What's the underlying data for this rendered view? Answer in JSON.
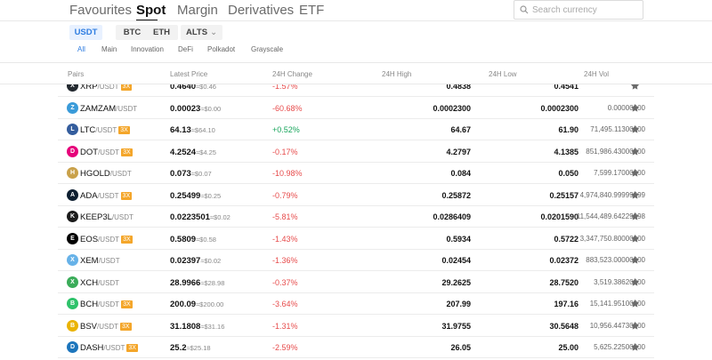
{
  "top_tabs": [
    "Favourites",
    "Spot",
    "Margin",
    "Derivatives",
    "ETF"
  ],
  "active_top_tab": "Spot",
  "search": {
    "placeholder": "Search currency"
  },
  "quote_tabs": [
    "USDT",
    "BTC",
    "ETH",
    "ALTS"
  ],
  "active_quote_tab": "USDT",
  "sub_tabs": [
    "All",
    "Main",
    "Innovation",
    "DeFi",
    "Polkadot",
    "Grayscale"
  ],
  "active_sub_tab": "All",
  "columns": {
    "pairs": "Pairs",
    "latest_price": "Latest Price",
    "change_24h": "24H Change",
    "high_24h": "24H High",
    "low_24h": "24H Low",
    "vol_24h": "24H Vol"
  },
  "quote_currency": "/USDT",
  "rows": [
    {
      "base": "XRP",
      "leverage": "3X",
      "price": "0.4640",
      "usd": "≈$0.46",
      "change": "-1.57%",
      "change_dir": "neg",
      "high": "0.4838",
      "low": "0.4541",
      "vol": "",
      "icon": "xrp",
      "icon_color": "#23292f",
      "partial": true
    },
    {
      "base": "ZAMZAM",
      "leverage": "",
      "price": "0.00023",
      "usd": "≈$0.00",
      "change": "-60.68%",
      "change_dir": "neg",
      "high": "0.0002300",
      "low": "0.0002300",
      "vol": "0.00000000",
      "icon": "zamzam",
      "icon_color": "#3a9bd9"
    },
    {
      "base": "LTC",
      "leverage": "3X",
      "price": "64.13",
      "usd": "≈$64.10",
      "change": "+0.52%",
      "change_dir": "pos",
      "high": "64.67",
      "low": "61.90",
      "vol": "71,495.11300000",
      "icon": "ltc",
      "icon_color": "#345d9d"
    },
    {
      "base": "DOT",
      "leverage": "3X",
      "price": "4.2524",
      "usd": "≈$4.25",
      "change": "-0.17%",
      "change_dir": "neg",
      "high": "4.2797",
      "low": "4.1385",
      "vol": "851,986.43000000",
      "icon": "dot",
      "icon_color": "#e6007a"
    },
    {
      "base": "HGOLD",
      "leverage": "",
      "price": "0.073",
      "usd": "≈$0.07",
      "change": "-10.98%",
      "change_dir": "neg",
      "high": "0.084",
      "low": "0.050",
      "vol": "7,599.17000000",
      "icon": "hgold",
      "icon_color": "#c9a14a"
    },
    {
      "base": "ADA",
      "leverage": "3X",
      "price": "0.25499",
      "usd": "≈$0.25",
      "change": "-0.79%",
      "change_dir": "neg",
      "high": "0.25872",
      "low": "0.25157",
      "vol": "4,974,840.99999999",
      "icon": "ada",
      "icon_color": "#0d1e30"
    },
    {
      "base": "KEEP3L",
      "leverage": "",
      "price": "0.0223501",
      "usd": "≈$0.02",
      "change": "-5.81%",
      "change_dir": "neg",
      "high": "0.0286409",
      "low": "0.0201590",
      "vol": "11,544,489.64229998",
      "icon": "keep3l",
      "icon_color": "#1b1b1b"
    },
    {
      "base": "EOS",
      "leverage": "3X",
      "price": "0.5809",
      "usd": "≈$0.58",
      "change": "-1.43%",
      "change_dir": "neg",
      "high": "0.5934",
      "low": "0.5722",
      "vol": "3,347,750.80000000",
      "icon": "eos",
      "icon_color": "#000000"
    },
    {
      "base": "XEM",
      "leverage": "",
      "price": "0.02397",
      "usd": "≈$0.02",
      "change": "-1.36%",
      "change_dir": "neg",
      "high": "0.02454",
      "low": "0.02372",
      "vol": "883,523.00000000",
      "icon": "xem",
      "icon_color": "#67b2e8"
    },
    {
      "base": "XCH",
      "leverage": "",
      "price": "28.9966",
      "usd": "≈$28.98",
      "change": "-0.37%",
      "change_dir": "neg",
      "high": "29.2625",
      "low": "28.7520",
      "vol": "3,519.38620000",
      "icon": "xch",
      "icon_color": "#3aac59"
    },
    {
      "base": "BCH",
      "leverage": "3X",
      "price": "200.09",
      "usd": "≈$200.00",
      "change": "-3.64%",
      "change_dir": "neg",
      "high": "207.99",
      "low": "197.16",
      "vol": "15,141.95100000",
      "icon": "bch",
      "icon_color": "#2ec26a"
    },
    {
      "base": "BSV",
      "leverage": "3X",
      "price": "31.1808",
      "usd": "≈$31.16",
      "change": "-1.31%",
      "change_dir": "neg",
      "high": "31.9755",
      "low": "30.5648",
      "vol": "10,956.44730000",
      "icon": "bsv",
      "icon_color": "#eab300"
    },
    {
      "base": "DASH",
      "leverage": "3X",
      "price": "25.2",
      "usd": "≈$25.18",
      "change": "-2.59%",
      "change_dir": "neg",
      "high": "26.05",
      "low": "25.00",
      "vol": "5,625.22500000",
      "icon": "dash",
      "icon_color": "#1c75bc"
    }
  ],
  "colors": {
    "accent": "#2f7de1",
    "negative": "#e74c4c",
    "positive": "#18a55c",
    "leverage_badge": "#f4a62a"
  }
}
